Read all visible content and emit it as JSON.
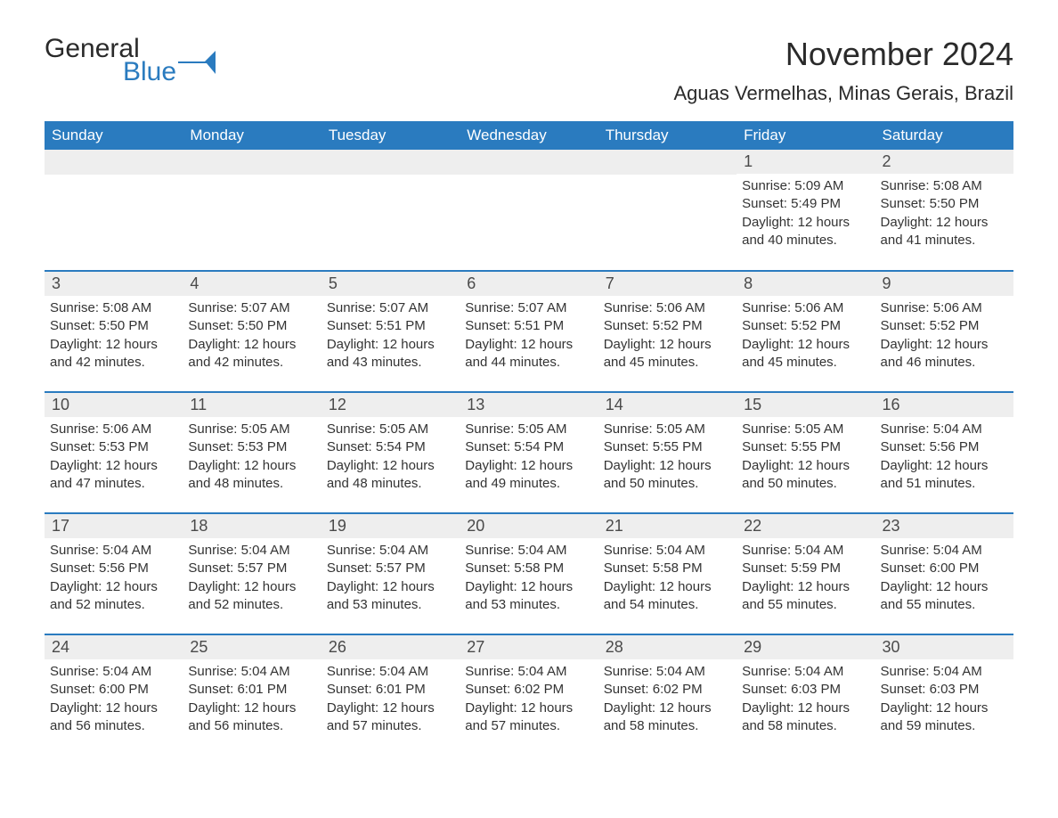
{
  "brand": {
    "general": "General",
    "blue": "Blue"
  },
  "title": "November 2024",
  "location": "Aguas Vermelhas, Minas Gerais, Brazil",
  "colors": {
    "header_bg": "#2a7bbf",
    "header_text": "#ffffff",
    "daynum_bg": "#eeeeee",
    "border": "#2a7bbf",
    "body_text": "#333333",
    "page_bg": "#ffffff"
  },
  "fonts": {
    "title_size_pt": 27,
    "location_size_pt": 16,
    "header_size_pt": 13,
    "body_size_pt": 11
  },
  "weekday_headers": [
    "Sunday",
    "Monday",
    "Tuesday",
    "Wednesday",
    "Thursday",
    "Friday",
    "Saturday"
  ],
  "weeks": [
    [
      null,
      null,
      null,
      null,
      null,
      {
        "n": "1",
        "sunrise": "Sunrise: 5:09 AM",
        "sunset": "Sunset: 5:49 PM",
        "daylight1": "Daylight: 12 hours",
        "daylight2": "and 40 minutes."
      },
      {
        "n": "2",
        "sunrise": "Sunrise: 5:08 AM",
        "sunset": "Sunset: 5:50 PM",
        "daylight1": "Daylight: 12 hours",
        "daylight2": "and 41 minutes."
      }
    ],
    [
      {
        "n": "3",
        "sunrise": "Sunrise: 5:08 AM",
        "sunset": "Sunset: 5:50 PM",
        "daylight1": "Daylight: 12 hours",
        "daylight2": "and 42 minutes."
      },
      {
        "n": "4",
        "sunrise": "Sunrise: 5:07 AM",
        "sunset": "Sunset: 5:50 PM",
        "daylight1": "Daylight: 12 hours",
        "daylight2": "and 42 minutes."
      },
      {
        "n": "5",
        "sunrise": "Sunrise: 5:07 AM",
        "sunset": "Sunset: 5:51 PM",
        "daylight1": "Daylight: 12 hours",
        "daylight2": "and 43 minutes."
      },
      {
        "n": "6",
        "sunrise": "Sunrise: 5:07 AM",
        "sunset": "Sunset: 5:51 PM",
        "daylight1": "Daylight: 12 hours",
        "daylight2": "and 44 minutes."
      },
      {
        "n": "7",
        "sunrise": "Sunrise: 5:06 AM",
        "sunset": "Sunset: 5:52 PM",
        "daylight1": "Daylight: 12 hours",
        "daylight2": "and 45 minutes."
      },
      {
        "n": "8",
        "sunrise": "Sunrise: 5:06 AM",
        "sunset": "Sunset: 5:52 PM",
        "daylight1": "Daylight: 12 hours",
        "daylight2": "and 45 minutes."
      },
      {
        "n": "9",
        "sunrise": "Sunrise: 5:06 AM",
        "sunset": "Sunset: 5:52 PM",
        "daylight1": "Daylight: 12 hours",
        "daylight2": "and 46 minutes."
      }
    ],
    [
      {
        "n": "10",
        "sunrise": "Sunrise: 5:06 AM",
        "sunset": "Sunset: 5:53 PM",
        "daylight1": "Daylight: 12 hours",
        "daylight2": "and 47 minutes."
      },
      {
        "n": "11",
        "sunrise": "Sunrise: 5:05 AM",
        "sunset": "Sunset: 5:53 PM",
        "daylight1": "Daylight: 12 hours",
        "daylight2": "and 48 minutes."
      },
      {
        "n": "12",
        "sunrise": "Sunrise: 5:05 AM",
        "sunset": "Sunset: 5:54 PM",
        "daylight1": "Daylight: 12 hours",
        "daylight2": "and 48 minutes."
      },
      {
        "n": "13",
        "sunrise": "Sunrise: 5:05 AM",
        "sunset": "Sunset: 5:54 PM",
        "daylight1": "Daylight: 12 hours",
        "daylight2": "and 49 minutes."
      },
      {
        "n": "14",
        "sunrise": "Sunrise: 5:05 AM",
        "sunset": "Sunset: 5:55 PM",
        "daylight1": "Daylight: 12 hours",
        "daylight2": "and 50 minutes."
      },
      {
        "n": "15",
        "sunrise": "Sunrise: 5:05 AM",
        "sunset": "Sunset: 5:55 PM",
        "daylight1": "Daylight: 12 hours",
        "daylight2": "and 50 minutes."
      },
      {
        "n": "16",
        "sunrise": "Sunrise: 5:04 AM",
        "sunset": "Sunset: 5:56 PM",
        "daylight1": "Daylight: 12 hours",
        "daylight2": "and 51 minutes."
      }
    ],
    [
      {
        "n": "17",
        "sunrise": "Sunrise: 5:04 AM",
        "sunset": "Sunset: 5:56 PM",
        "daylight1": "Daylight: 12 hours",
        "daylight2": "and 52 minutes."
      },
      {
        "n": "18",
        "sunrise": "Sunrise: 5:04 AM",
        "sunset": "Sunset: 5:57 PM",
        "daylight1": "Daylight: 12 hours",
        "daylight2": "and 52 minutes."
      },
      {
        "n": "19",
        "sunrise": "Sunrise: 5:04 AM",
        "sunset": "Sunset: 5:57 PM",
        "daylight1": "Daylight: 12 hours",
        "daylight2": "and 53 minutes."
      },
      {
        "n": "20",
        "sunrise": "Sunrise: 5:04 AM",
        "sunset": "Sunset: 5:58 PM",
        "daylight1": "Daylight: 12 hours",
        "daylight2": "and 53 minutes."
      },
      {
        "n": "21",
        "sunrise": "Sunrise: 5:04 AM",
        "sunset": "Sunset: 5:58 PM",
        "daylight1": "Daylight: 12 hours",
        "daylight2": "and 54 minutes."
      },
      {
        "n": "22",
        "sunrise": "Sunrise: 5:04 AM",
        "sunset": "Sunset: 5:59 PM",
        "daylight1": "Daylight: 12 hours",
        "daylight2": "and 55 minutes."
      },
      {
        "n": "23",
        "sunrise": "Sunrise: 5:04 AM",
        "sunset": "Sunset: 6:00 PM",
        "daylight1": "Daylight: 12 hours",
        "daylight2": "and 55 minutes."
      }
    ],
    [
      {
        "n": "24",
        "sunrise": "Sunrise: 5:04 AM",
        "sunset": "Sunset: 6:00 PM",
        "daylight1": "Daylight: 12 hours",
        "daylight2": "and 56 minutes."
      },
      {
        "n": "25",
        "sunrise": "Sunrise: 5:04 AM",
        "sunset": "Sunset: 6:01 PM",
        "daylight1": "Daylight: 12 hours",
        "daylight2": "and 56 minutes."
      },
      {
        "n": "26",
        "sunrise": "Sunrise: 5:04 AM",
        "sunset": "Sunset: 6:01 PM",
        "daylight1": "Daylight: 12 hours",
        "daylight2": "and 57 minutes."
      },
      {
        "n": "27",
        "sunrise": "Sunrise: 5:04 AM",
        "sunset": "Sunset: 6:02 PM",
        "daylight1": "Daylight: 12 hours",
        "daylight2": "and 57 minutes."
      },
      {
        "n": "28",
        "sunrise": "Sunrise: 5:04 AM",
        "sunset": "Sunset: 6:02 PM",
        "daylight1": "Daylight: 12 hours",
        "daylight2": "and 58 minutes."
      },
      {
        "n": "29",
        "sunrise": "Sunrise: 5:04 AM",
        "sunset": "Sunset: 6:03 PM",
        "daylight1": "Daylight: 12 hours",
        "daylight2": "and 58 minutes."
      },
      {
        "n": "30",
        "sunrise": "Sunrise: 5:04 AM",
        "sunset": "Sunset: 6:03 PM",
        "daylight1": "Daylight: 12 hours",
        "daylight2": "and 59 minutes."
      }
    ]
  ]
}
